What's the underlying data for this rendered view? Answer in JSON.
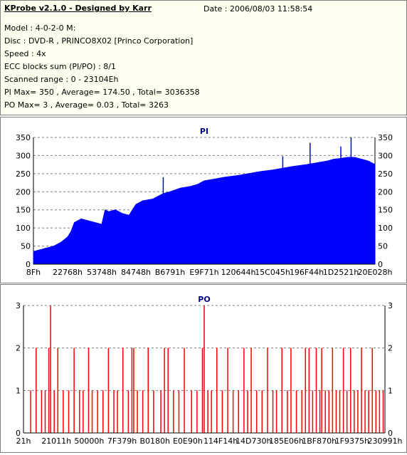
{
  "header": {
    "title": "KProbe v2.1.0 - Designed by Karr",
    "date": "Date : 2006/08/03 11:58:54",
    "model": "Model : 4-0-2-0 M:",
    "disc": "Disc : DVD-R , PRINCO8X02 [Princo Corporation]",
    "speed": "Speed : 4x",
    "ecc": "ECC blocks sum (PI/PO) : 8/1",
    "range": "Scanned range : 0 - 23104Eh",
    "pi_stats": "PI Max= 350 , Average= 174.50 , Total= 3036358",
    "po_stats": "PO Max= 3 , Average= 0.03 , Total= 3263"
  },
  "colors": {
    "pi": "#0000ff",
    "po": "#ff0000",
    "grid": "#7f7f7f",
    "title": "#000080"
  },
  "chart_data": [
    {
      "type": "area",
      "title": "PI",
      "x_tick_labels": [
        "8Fh",
        "22768h",
        "53748h",
        "84748h",
        "B6791h",
        "E9F71h",
        "120644h",
        "15C045h",
        "196F44h",
        "1D2521h",
        "20E028h"
      ],
      "y_ticks": [
        0,
        50,
        100,
        150,
        200,
        250,
        300,
        350
      ],
      "ylim": [
        0,
        350
      ],
      "x": [
        0,
        0.02,
        0.04,
        0.06,
        0.08,
        0.1,
        0.11,
        0.12,
        0.14,
        0.16,
        0.18,
        0.2,
        0.21,
        0.22,
        0.24,
        0.26,
        0.28,
        0.3,
        0.32,
        0.35,
        0.38,
        0.4,
        0.43,
        0.46,
        0.48,
        0.5,
        0.53,
        0.56,
        0.6,
        0.63,
        0.66,
        0.7,
        0.73,
        0.76,
        0.8,
        0.83,
        0.86,
        0.88,
        0.9,
        0.92,
        0.94,
        0.96,
        0.98,
        1.0
      ],
      "y": [
        35,
        40,
        45,
        50,
        60,
        75,
        90,
        115,
        125,
        120,
        115,
        110,
        150,
        145,
        150,
        140,
        135,
        165,
        175,
        180,
        195,
        200,
        210,
        215,
        220,
        230,
        235,
        240,
        245,
        250,
        255,
        260,
        265,
        270,
        275,
        280,
        285,
        290,
        292,
        295,
        295,
        290,
        285,
        275
      ],
      "spikes": [
        {
          "x": 0.38,
          "y": 240
        },
        {
          "x": 0.73,
          "y": 298
        },
        {
          "x": 0.81,
          "y": 335
        },
        {
          "x": 0.9,
          "y": 325
        },
        {
          "x": 0.93,
          "y": 350
        }
      ]
    },
    {
      "type": "bar",
      "title": "PO",
      "x_tick_labels": [
        "21h",
        "21011h",
        "50000h",
        "7F379h",
        "B0180h",
        "E0E90h",
        "114F14h",
        "14D730h",
        "185E06h",
        "1BF870h",
        "1F9375h",
        "230991h"
      ],
      "y_ticks": [
        0,
        1,
        2,
        3
      ],
      "ylim": [
        0,
        3
      ],
      "x": [
        0.02,
        0.035,
        0.05,
        0.06,
        0.07,
        0.075,
        0.085,
        0.095,
        0.11,
        0.125,
        0.14,
        0.155,
        0.165,
        0.18,
        0.19,
        0.205,
        0.22,
        0.235,
        0.25,
        0.26,
        0.275,
        0.29,
        0.3,
        0.305,
        0.315,
        0.33,
        0.345,
        0.36,
        0.38,
        0.39,
        0.4,
        0.415,
        0.43,
        0.445,
        0.465,
        0.48,
        0.495,
        0.5,
        0.51,
        0.52,
        0.535,
        0.55,
        0.565,
        0.58,
        0.595,
        0.61,
        0.62,
        0.63,
        0.645,
        0.66,
        0.675,
        0.69,
        0.7,
        0.715,
        0.73,
        0.74,
        0.755,
        0.77,
        0.78,
        0.79,
        0.8,
        0.81,
        0.82,
        0.825,
        0.835,
        0.845,
        0.855,
        0.865,
        0.875,
        0.885,
        0.895,
        0.905,
        0.915,
        0.925,
        0.935,
        0.945,
        0.955,
        0.965,
        0.975,
        0.985,
        0.995
      ],
      "values": [
        1,
        2,
        1,
        1,
        2,
        3,
        1,
        2,
        1,
        1,
        2,
        1,
        1,
        2,
        1,
        1,
        1,
        2,
        1,
        1,
        2,
        1,
        2,
        2,
        1,
        1,
        2,
        1,
        1,
        2,
        2,
        1,
        1,
        2,
        1,
        1,
        2,
        3,
        1,
        1,
        2,
        1,
        2,
        1,
        1,
        2,
        1,
        2,
        1,
        1,
        2,
        1,
        1,
        2,
        1,
        2,
        1,
        1,
        2,
        2,
        1,
        2,
        1,
        2,
        1,
        1,
        2,
        1,
        1,
        2,
        1,
        2,
        1,
        1,
        2,
        1,
        1,
        2,
        1,
        1,
        1
      ]
    }
  ]
}
